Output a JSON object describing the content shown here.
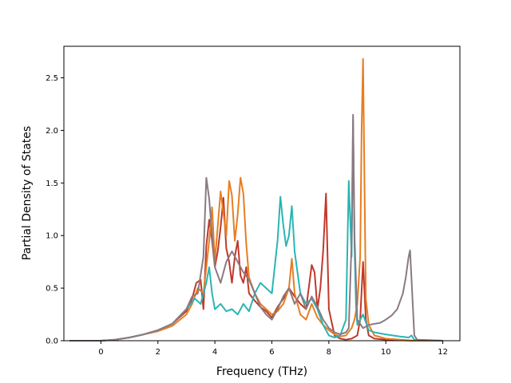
{
  "chart_data": {
    "type": "line",
    "title": "",
    "xlabel": "Frequency (THz)",
    "ylabel": "Partial Density of States",
    "xlim": [
      -1.3,
      12.6
    ],
    "ylim": [
      0,
      2.8
    ],
    "xticks": [
      0,
      2,
      4,
      6,
      8,
      10,
      12
    ],
    "xtick_labels": [
      "0",
      "2",
      "4",
      "6",
      "8",
      "10",
      "12"
    ],
    "yticks": [
      0.0,
      0.5,
      1.0,
      1.5,
      2.0,
      2.5
    ],
    "ytick_labels": [
      "0.0",
      "0.5",
      "1.0",
      "1.5",
      "2.0",
      "2.5"
    ],
    "grid": false,
    "legend": "none",
    "series": [
      {
        "color": "#c0392b",
        "x": [
          -1.1,
          0,
          0.5,
          1,
          1.5,
          2,
          2.5,
          3,
          3.2,
          3.35,
          3.5,
          3.6,
          3.7,
          3.8,
          3.9,
          4.0,
          4.1,
          4.2,
          4.3,
          4.4,
          4.5,
          4.6,
          4.7,
          4.8,
          4.9,
          5.0,
          5.1,
          5.2,
          5.4,
          5.6,
          5.8,
          6.0,
          6.2,
          6.4,
          6.6,
          6.8,
          7.0,
          7.2,
          7.4,
          7.5,
          7.6,
          7.7,
          7.8,
          7.9,
          8.0,
          8.2,
          8.4,
          8.6,
          8.8,
          9.0,
          9.1,
          9.2,
          9.3,
          9.4,
          9.6,
          10,
          11,
          12
        ],
        "y": [
          0,
          0,
          0.01,
          0.03,
          0.06,
          0.1,
          0.16,
          0.28,
          0.4,
          0.55,
          0.58,
          0.3,
          0.9,
          1.15,
          0.95,
          0.7,
          0.85,
          1.08,
          1.36,
          0.88,
          0.75,
          0.55,
          0.8,
          0.95,
          0.62,
          0.55,
          0.7,
          0.45,
          0.38,
          0.32,
          0.28,
          0.22,
          0.32,
          0.4,
          0.5,
          0.42,
          0.35,
          0.3,
          0.72,
          0.65,
          0.3,
          0.5,
          0.85,
          1.4,
          0.3,
          0.05,
          0.02,
          0.01,
          0.02,
          0.05,
          0.2,
          0.75,
          0.2,
          0.05,
          0.02,
          0.01,
          0,
          0
        ]
      },
      {
        "color": "#e67e22",
        "x": [
          -1.1,
          0,
          0.5,
          1,
          1.5,
          2,
          2.5,
          3,
          3.2,
          3.4,
          3.6,
          3.8,
          3.9,
          4.0,
          4.2,
          4.4,
          4.5,
          4.6,
          4.7,
          4.8,
          4.9,
          5.0,
          5.1,
          5.2,
          5.4,
          5.6,
          5.8,
          6.0,
          6.2,
          6.4,
          6.6,
          6.7,
          6.8,
          7.0,
          7.2,
          7.4,
          7.6,
          7.8,
          8.0,
          8.2,
          8.4,
          8.6,
          8.8,
          8.9,
          9.0,
          9.1,
          9.15,
          9.2,
          9.25,
          9.3,
          9.4,
          9.6,
          10,
          11,
          12
        ],
        "y": [
          0,
          0,
          0.01,
          0.03,
          0.06,
          0.09,
          0.14,
          0.25,
          0.35,
          0.5,
          0.45,
          0.95,
          1.27,
          0.75,
          1.42,
          1.0,
          1.52,
          1.38,
          0.95,
          1.2,
          1.55,
          1.4,
          0.92,
          0.6,
          0.45,
          0.35,
          0.3,
          0.25,
          0.28,
          0.35,
          0.5,
          0.78,
          0.45,
          0.25,
          0.2,
          0.35,
          0.22,
          0.15,
          0.1,
          0.06,
          0.04,
          0.05,
          0.12,
          0.2,
          0.35,
          0.8,
          2.0,
          2.68,
          1.5,
          0.4,
          0.15,
          0.05,
          0.02,
          0,
          0
        ]
      },
      {
        "color": "#2ab5b5",
        "x": [
          -1.1,
          0,
          0.5,
          1,
          1.5,
          2,
          2.5,
          3,
          3.3,
          3.5,
          3.7,
          3.8,
          3.9,
          4.0,
          4.2,
          4.4,
          4.6,
          4.8,
          5.0,
          5.2,
          5.4,
          5.6,
          5.8,
          6.0,
          6.2,
          6.3,
          6.4,
          6.5,
          6.6,
          6.7,
          6.8,
          7.0,
          7.2,
          7.4,
          7.6,
          7.8,
          8.0,
          8.2,
          8.4,
          8.6,
          8.7,
          8.8,
          8.85,
          8.9,
          8.95,
          9.0,
          9.2,
          9.4,
          9.6,
          10,
          10.5,
          10.8,
          10.9,
          11,
          12
        ],
        "y": [
          0,
          0,
          0.01,
          0.03,
          0.06,
          0.1,
          0.16,
          0.3,
          0.4,
          0.35,
          0.55,
          0.7,
          0.45,
          0.3,
          0.35,
          0.28,
          0.3,
          0.25,
          0.35,
          0.28,
          0.45,
          0.55,
          0.5,
          0.45,
          0.95,
          1.37,
          1.1,
          0.9,
          1.0,
          1.28,
          0.85,
          0.45,
          0.35,
          0.4,
          0.3,
          0.15,
          0.05,
          0.03,
          0.05,
          0.2,
          1.52,
          0.8,
          2.1,
          0.9,
          0.35,
          0.15,
          0.25,
          0.1,
          0.08,
          0.06,
          0.04,
          0.03,
          0.05,
          0.01,
          0
        ]
      },
      {
        "color": "#8a7a82",
        "x": [
          -1.1,
          0,
          0.5,
          1,
          1.5,
          2,
          2.5,
          3,
          3.2,
          3.4,
          3.6,
          3.7,
          3.8,
          3.9,
          4.0,
          4.2,
          4.4,
          4.6,
          4.8,
          5.0,
          5.2,
          5.4,
          5.6,
          5.8,
          6.0,
          6.2,
          6.4,
          6.6,
          6.8,
          7.0,
          7.2,
          7.4,
          7.6,
          7.8,
          8.0,
          8.2,
          8.4,
          8.6,
          8.7,
          8.8,
          8.85,
          8.9,
          9.0,
          9.2,
          9.4,
          9.6,
          9.8,
          10.0,
          10.2,
          10.4,
          10.6,
          10.7,
          10.8,
          10.85,
          10.9,
          11.0,
          11.1,
          12
        ],
        "y": [
          0,
          0,
          0.01,
          0.03,
          0.06,
          0.1,
          0.16,
          0.3,
          0.42,
          0.45,
          0.8,
          1.55,
          1.35,
          1.0,
          0.7,
          0.55,
          0.75,
          0.85,
          0.75,
          0.65,
          0.58,
          0.45,
          0.32,
          0.25,
          0.2,
          0.3,
          0.42,
          0.5,
          0.35,
          0.45,
          0.3,
          0.42,
          0.32,
          0.2,
          0.12,
          0.08,
          0.06,
          0.08,
          0.12,
          0.95,
          2.15,
          1.0,
          0.2,
          0.12,
          0.15,
          0.16,
          0.17,
          0.2,
          0.24,
          0.3,
          0.45,
          0.6,
          0.8,
          0.86,
          0.6,
          0.05,
          0.01,
          0
        ]
      }
    ]
  }
}
